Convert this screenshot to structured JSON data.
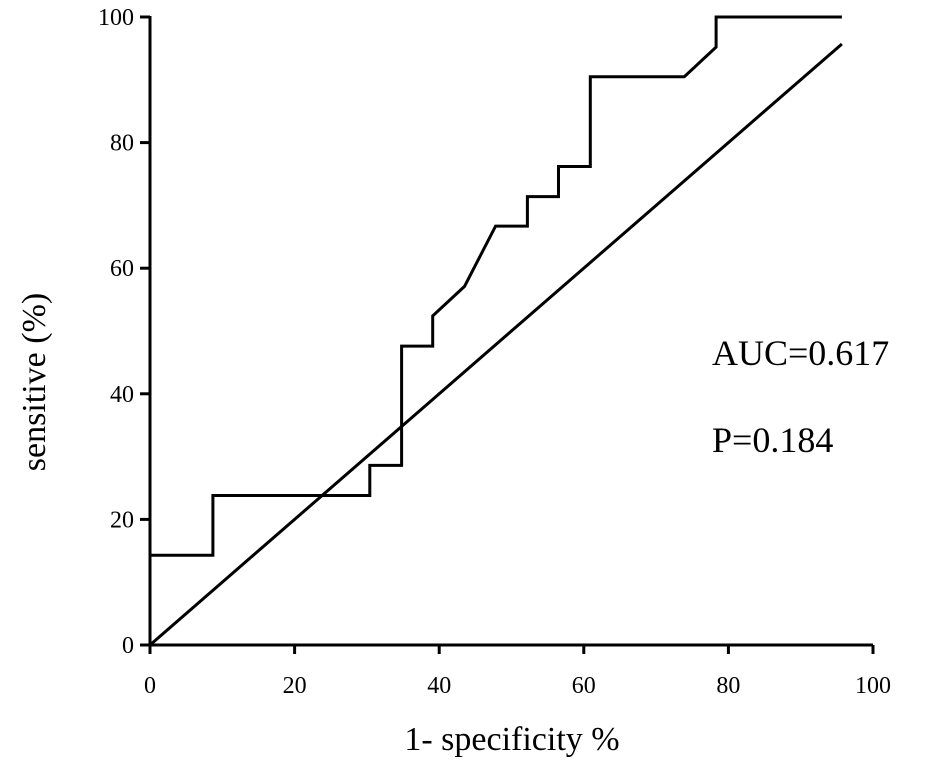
{
  "chart_data": {
    "type": "line",
    "title": "",
    "xlabel": "1- specificity %",
    "ylabel": "sensitive (%)",
    "xlim": [
      0,
      100
    ],
    "ylim": [
      0,
      100
    ],
    "x_ticks": [
      0,
      20,
      40,
      60,
      80,
      100
    ],
    "y_ticks": [
      0,
      20,
      40,
      60,
      80,
      100
    ],
    "grid": false,
    "series": [
      {
        "points": [
          [
            0,
            14.3
          ],
          [
            8.7,
            14.3
          ],
          [
            8.7,
            23.8
          ],
          [
            30.4,
            23.8
          ],
          [
            30.4,
            28.6
          ],
          [
            34.8,
            28.6
          ],
          [
            34.8,
            47.6
          ],
          [
            39.1,
            47.6
          ],
          [
            39.1,
            52.4
          ],
          [
            43.5,
            57.1
          ],
          [
            47.8,
            66.7
          ],
          [
            52.2,
            66.7
          ],
          [
            52.2,
            71.4
          ],
          [
            56.5,
            71.4
          ],
          [
            56.5,
            76.2
          ],
          [
            60.9,
            76.2
          ],
          [
            60.9,
            90.5
          ],
          [
            73.9,
            90.5
          ],
          [
            78.3,
            95.2
          ],
          [
            78.3,
            100
          ],
          [
            95.7,
            100
          ]
        ]
      },
      {
        "points": [
          [
            0,
            0
          ],
          [
            95.7,
            95.7
          ]
        ]
      }
    ],
    "annotations": [
      "AUC=0.617",
      "P=0.184"
    ]
  }
}
